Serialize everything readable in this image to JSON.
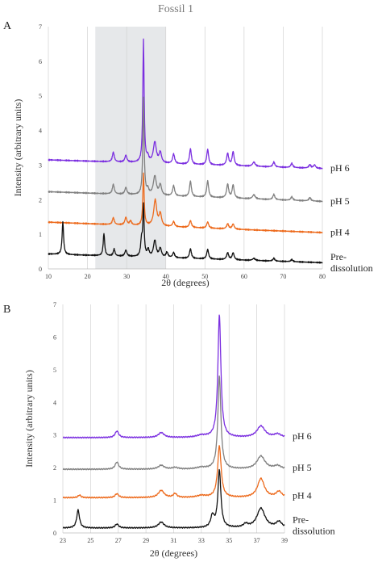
{
  "figure_title": "Fossil 1",
  "colors": {
    "pH 6": "#7b2fe0",
    "pH 5": "#808080",
    "pH 4": "#ed6a1c",
    "Pre-dissolution": "#111111",
    "highlight": "#e6e8ea",
    "grid": "#d2d2d2"
  },
  "chart_data": [
    {
      "panel": "A",
      "type": "line",
      "xlabel": "2θ (degrees)",
      "ylabel": "Intensity (arbitrary units)",
      "xlim": [
        10,
        80
      ],
      "ylim": [
        0,
        7
      ],
      "xticks": [
        10,
        20,
        30,
        40,
        50,
        60,
        70,
        80
      ],
      "yticks": [
        0,
        1,
        2,
        3,
        4,
        5,
        6,
        7
      ],
      "highlight_x": [
        22,
        40
      ],
      "grid": "vertical",
      "series": [
        {
          "name": "pH 6",
          "label_lines": [
            "pH 6"
          ],
          "offset": 2.8,
          "base": [
            0.35,
            0.1
          ],
          "peaks": [
            [
              26.6,
              0.28,
              0.28
            ],
            [
              29.8,
              0.2,
              0.3
            ],
            [
              34.3,
              3.55,
              0.2
            ],
            [
              35.4,
              0.15,
              0.3
            ],
            [
              37.2,
              0.6,
              0.45
            ],
            [
              38.6,
              0.3,
              0.35
            ],
            [
              42,
              0.28,
              0.3
            ],
            [
              46.3,
              0.45,
              0.28
            ],
            [
              50.7,
              0.45,
              0.28
            ],
            [
              55.8,
              0.35,
              0.3
            ],
            [
              57.2,
              0.4,
              0.3
            ],
            [
              62.5,
              0.12,
              0.4
            ],
            [
              67.6,
              0.14,
              0.3
            ],
            [
              72.2,
              0.12,
              0.3
            ],
            [
              76.8,
              0.1,
              0.3
            ],
            [
              78,
              0.1,
              0.3
            ]
          ]
        },
        {
          "name": "pH 5",
          "label_lines": [
            "pH 5"
          ],
          "offset": 1.85,
          "base": [
            0.38,
            0.1
          ],
          "peaks": [
            [
              26.6,
              0.28,
              0.28
            ],
            [
              29.8,
              0.2,
              0.3
            ],
            [
              34.3,
              2.8,
              0.2
            ],
            [
              35.4,
              0.15,
              0.3
            ],
            [
              37.2,
              0.55,
              0.45
            ],
            [
              38.6,
              0.3,
              0.35
            ],
            [
              42,
              0.3,
              0.3
            ],
            [
              46.3,
              0.45,
              0.28
            ],
            [
              50.7,
              0.48,
              0.28
            ],
            [
              55.8,
              0.4,
              0.3
            ],
            [
              57.2,
              0.38,
              0.3
            ],
            [
              62.5,
              0.12,
              0.4
            ],
            [
              67.6,
              0.15,
              0.3
            ],
            [
              72.2,
              0.1,
              0.3
            ],
            [
              76.8,
              0.1,
              0.3
            ]
          ]
        },
        {
          "name": "pH 4",
          "label_lines": [
            "pH 4"
          ],
          "offset": 0.95,
          "base": [
            0.4,
            0.1
          ],
          "peaks": [
            [
              26.6,
              0.2,
              0.28
            ],
            [
              29.8,
              0.22,
              0.3
            ],
            [
              31,
              0.12,
              0.3
            ],
            [
              34.3,
              1.5,
              0.2
            ],
            [
              37.3,
              0.75,
              0.45
            ],
            [
              38.6,
              0.35,
              0.35
            ],
            [
              42,
              0.15,
              0.3
            ],
            [
              46.3,
              0.2,
              0.3
            ],
            [
              50.7,
              0.18,
              0.3
            ],
            [
              55.8,
              0.15,
              0.3
            ],
            [
              57.2,
              0.15,
              0.3
            ]
          ]
        },
        {
          "name": "Pre-dissolution",
          "label_lines": [
            "Pre-",
            "dissolution"
          ],
          "offset": 0.08,
          "base": [
            0.35,
            0.1
          ],
          "peaks": [
            [
              13.7,
              0.95,
              0.22
            ],
            [
              24.2,
              0.65,
              0.22
            ],
            [
              26.8,
              0.2,
              0.25
            ],
            [
              29.8,
              0.18,
              0.3
            ],
            [
              33.8,
              0.45,
              0.25
            ],
            [
              34.3,
              1.45,
              0.2
            ],
            [
              35.5,
              0.2,
              0.3
            ],
            [
              37.2,
              0.48,
              0.4
            ],
            [
              38.6,
              0.25,
              0.35
            ],
            [
              40.3,
              0.15,
              0.3
            ],
            [
              42,
              0.15,
              0.3
            ],
            [
              46.3,
              0.28,
              0.28
            ],
            [
              50.7,
              0.28,
              0.28
            ],
            [
              55.8,
              0.2,
              0.3
            ],
            [
              57.2,
              0.2,
              0.3
            ],
            [
              62.5,
              0.06,
              0.4
            ],
            [
              67.6,
              0.08,
              0.3
            ],
            [
              72.2,
              0.06,
              0.3
            ]
          ]
        }
      ]
    },
    {
      "panel": "B",
      "type": "line",
      "xlabel": "2θ (degrees)",
      "ylabel": "Intensity (arbitrary units)",
      "xlim": [
        23,
        39
      ],
      "ylim": [
        0,
        7
      ],
      "xticks": [
        23,
        25,
        27,
        29,
        31,
        33,
        35,
        37,
        39
      ],
      "yticks": [
        0,
        1,
        2,
        3,
        4,
        5,
        6,
        7
      ],
      "grid": "vertical",
      "series": [
        {
          "name": "pH 6",
          "label_lines": [
            "pH 6"
          ],
          "offset": 2.92,
          "base": [
            0,
            0
          ],
          "peaks": [
            [
              26.9,
              0.2,
              0.15
            ],
            [
              30.1,
              0.15,
              0.25
            ],
            [
              33.0,
              0.06,
              0.4
            ],
            [
              34.3,
              3.75,
              0.13
            ],
            [
              37.3,
              0.35,
              0.35
            ],
            [
              38.5,
              0.1,
              0.3
            ]
          ]
        },
        {
          "name": "pH 5",
          "label_lines": [
            "pH 5"
          ],
          "offset": 1.95,
          "base": [
            0,
            0
          ],
          "peaks": [
            [
              26.9,
              0.22,
              0.15
            ],
            [
              30.1,
              0.12,
              0.25
            ],
            [
              31.1,
              0.05,
              0.25
            ],
            [
              33.0,
              0.05,
              0.4
            ],
            [
              34.3,
              2.85,
              0.13
            ],
            [
              37.3,
              0.4,
              0.35
            ],
            [
              38.5,
              0.1,
              0.3
            ]
          ]
        },
        {
          "name": "pH 4",
          "label_lines": [
            "pH 4"
          ],
          "offset": 1.08,
          "base": [
            0,
            0
          ],
          "peaks": [
            [
              24.2,
              0.08,
              0.12
            ],
            [
              26.9,
              0.12,
              0.15
            ],
            [
              30.1,
              0.22,
              0.25
            ],
            [
              31.1,
              0.12,
              0.15
            ],
            [
              33.0,
              0.06,
              0.4
            ],
            [
              34.3,
              1.58,
              0.15
            ],
            [
              37.3,
              0.58,
              0.3
            ],
            [
              38.6,
              0.18,
              0.25
            ]
          ]
        },
        {
          "name": "Pre-dissolution",
          "label_lines": [
            "Pre-",
            "dissolution"
          ],
          "offset": 0.15,
          "base": [
            0,
            0
          ],
          "peaks": [
            [
              24.1,
              0.55,
              0.12
            ],
            [
              26.9,
              0.12,
              0.15
            ],
            [
              30.1,
              0.18,
              0.25
            ],
            [
              33.8,
              0.35,
              0.15
            ],
            [
              34.3,
              1.75,
              0.13
            ],
            [
              36.2,
              0.1,
              0.2
            ],
            [
              37.3,
              0.6,
              0.35
            ],
            [
              38.6,
              0.18,
              0.25
            ]
          ]
        }
      ]
    }
  ]
}
